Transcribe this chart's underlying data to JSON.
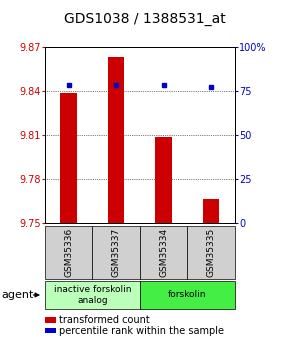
{
  "title": "GDS1038 / 1388531_at",
  "samples": [
    "GSM35336",
    "GSM35337",
    "GSM35334",
    "GSM35335"
  ],
  "bar_values": [
    9.838,
    9.863,
    9.808,
    9.766
  ],
  "percentile_values": [
    78,
    78,
    78,
    77
  ],
  "ylim_left": [
    9.75,
    9.87
  ],
  "ylim_right": [
    0,
    100
  ],
  "yticks_left": [
    9.75,
    9.78,
    9.81,
    9.84,
    9.87
  ],
  "yticks_left_labels": [
    "9.75",
    "9.78",
    "9.81",
    "9.84",
    "9.87"
  ],
  "yticks_right": [
    0,
    25,
    50,
    75,
    100
  ],
  "yticks_right_labels": [
    "0",
    "25",
    "50",
    "75",
    "100%"
  ],
  "bar_color": "#cc0000",
  "dot_color": "#0000cc",
  "bar_width": 0.35,
  "grid_color": "#000000",
  "group_data": [
    {
      "span": [
        0,
        2
      ],
      "label": "inactive forskolin\nanalog",
      "color": "#bbffbb"
    },
    {
      "span": [
        2,
        4
      ],
      "label": "forskolin",
      "color": "#44ee44"
    }
  ],
  "legend_items": [
    {
      "color": "#cc0000",
      "label": "transformed count"
    },
    {
      "color": "#0000cc",
      "label": "percentile rank within the sample"
    }
  ],
  "left_axis_color": "#cc0000",
  "right_axis_color": "#0000cc",
  "title_fontsize": 10,
  "tick_fontsize": 7,
  "sample_fontsize": 6.5,
  "group_fontsize": 6.5,
  "legend_fontsize": 7
}
